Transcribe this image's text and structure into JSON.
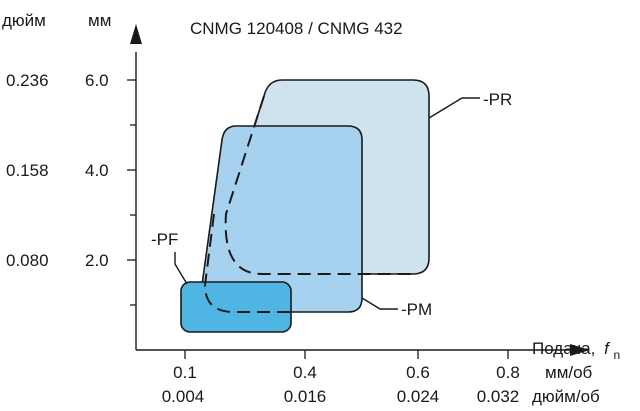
{
  "title": "CNMG 120408 / CNMG 432",
  "y_units": {
    "inch": "дюйм",
    "mm": "мм"
  },
  "x_axis": {
    "label": "Подача,",
    "symbol": "f",
    "subscript": "n",
    "unit_mm": "мм/об",
    "unit_inch": "дюйм/об"
  },
  "y_ticks": [
    {
      "mm": "2.0",
      "inch": "0.080"
    },
    {
      "mm": "4.0",
      "inch": "0.158"
    },
    {
      "mm": "6.0",
      "inch": "0.236"
    }
  ],
  "x_ticks": [
    {
      "mm": "0.1",
      "inch": "0.004"
    },
    {
      "mm": "0.4",
      "inch": "0.016"
    },
    {
      "mm": "0.6",
      "inch": "0.024"
    },
    {
      "mm": "0.8",
      "inch": "0.032"
    }
  ],
  "regions": [
    {
      "name": "-PR",
      "fill": "#cfe3ef",
      "stroke": "#1a1a1a"
    },
    {
      "name": "-PM",
      "fill": "#a6d2f0",
      "stroke": "#1a1a1a"
    },
    {
      "name": "-PF",
      "fill": "#4fb6e4",
      "stroke": "#1a1a1a"
    }
  ]
}
